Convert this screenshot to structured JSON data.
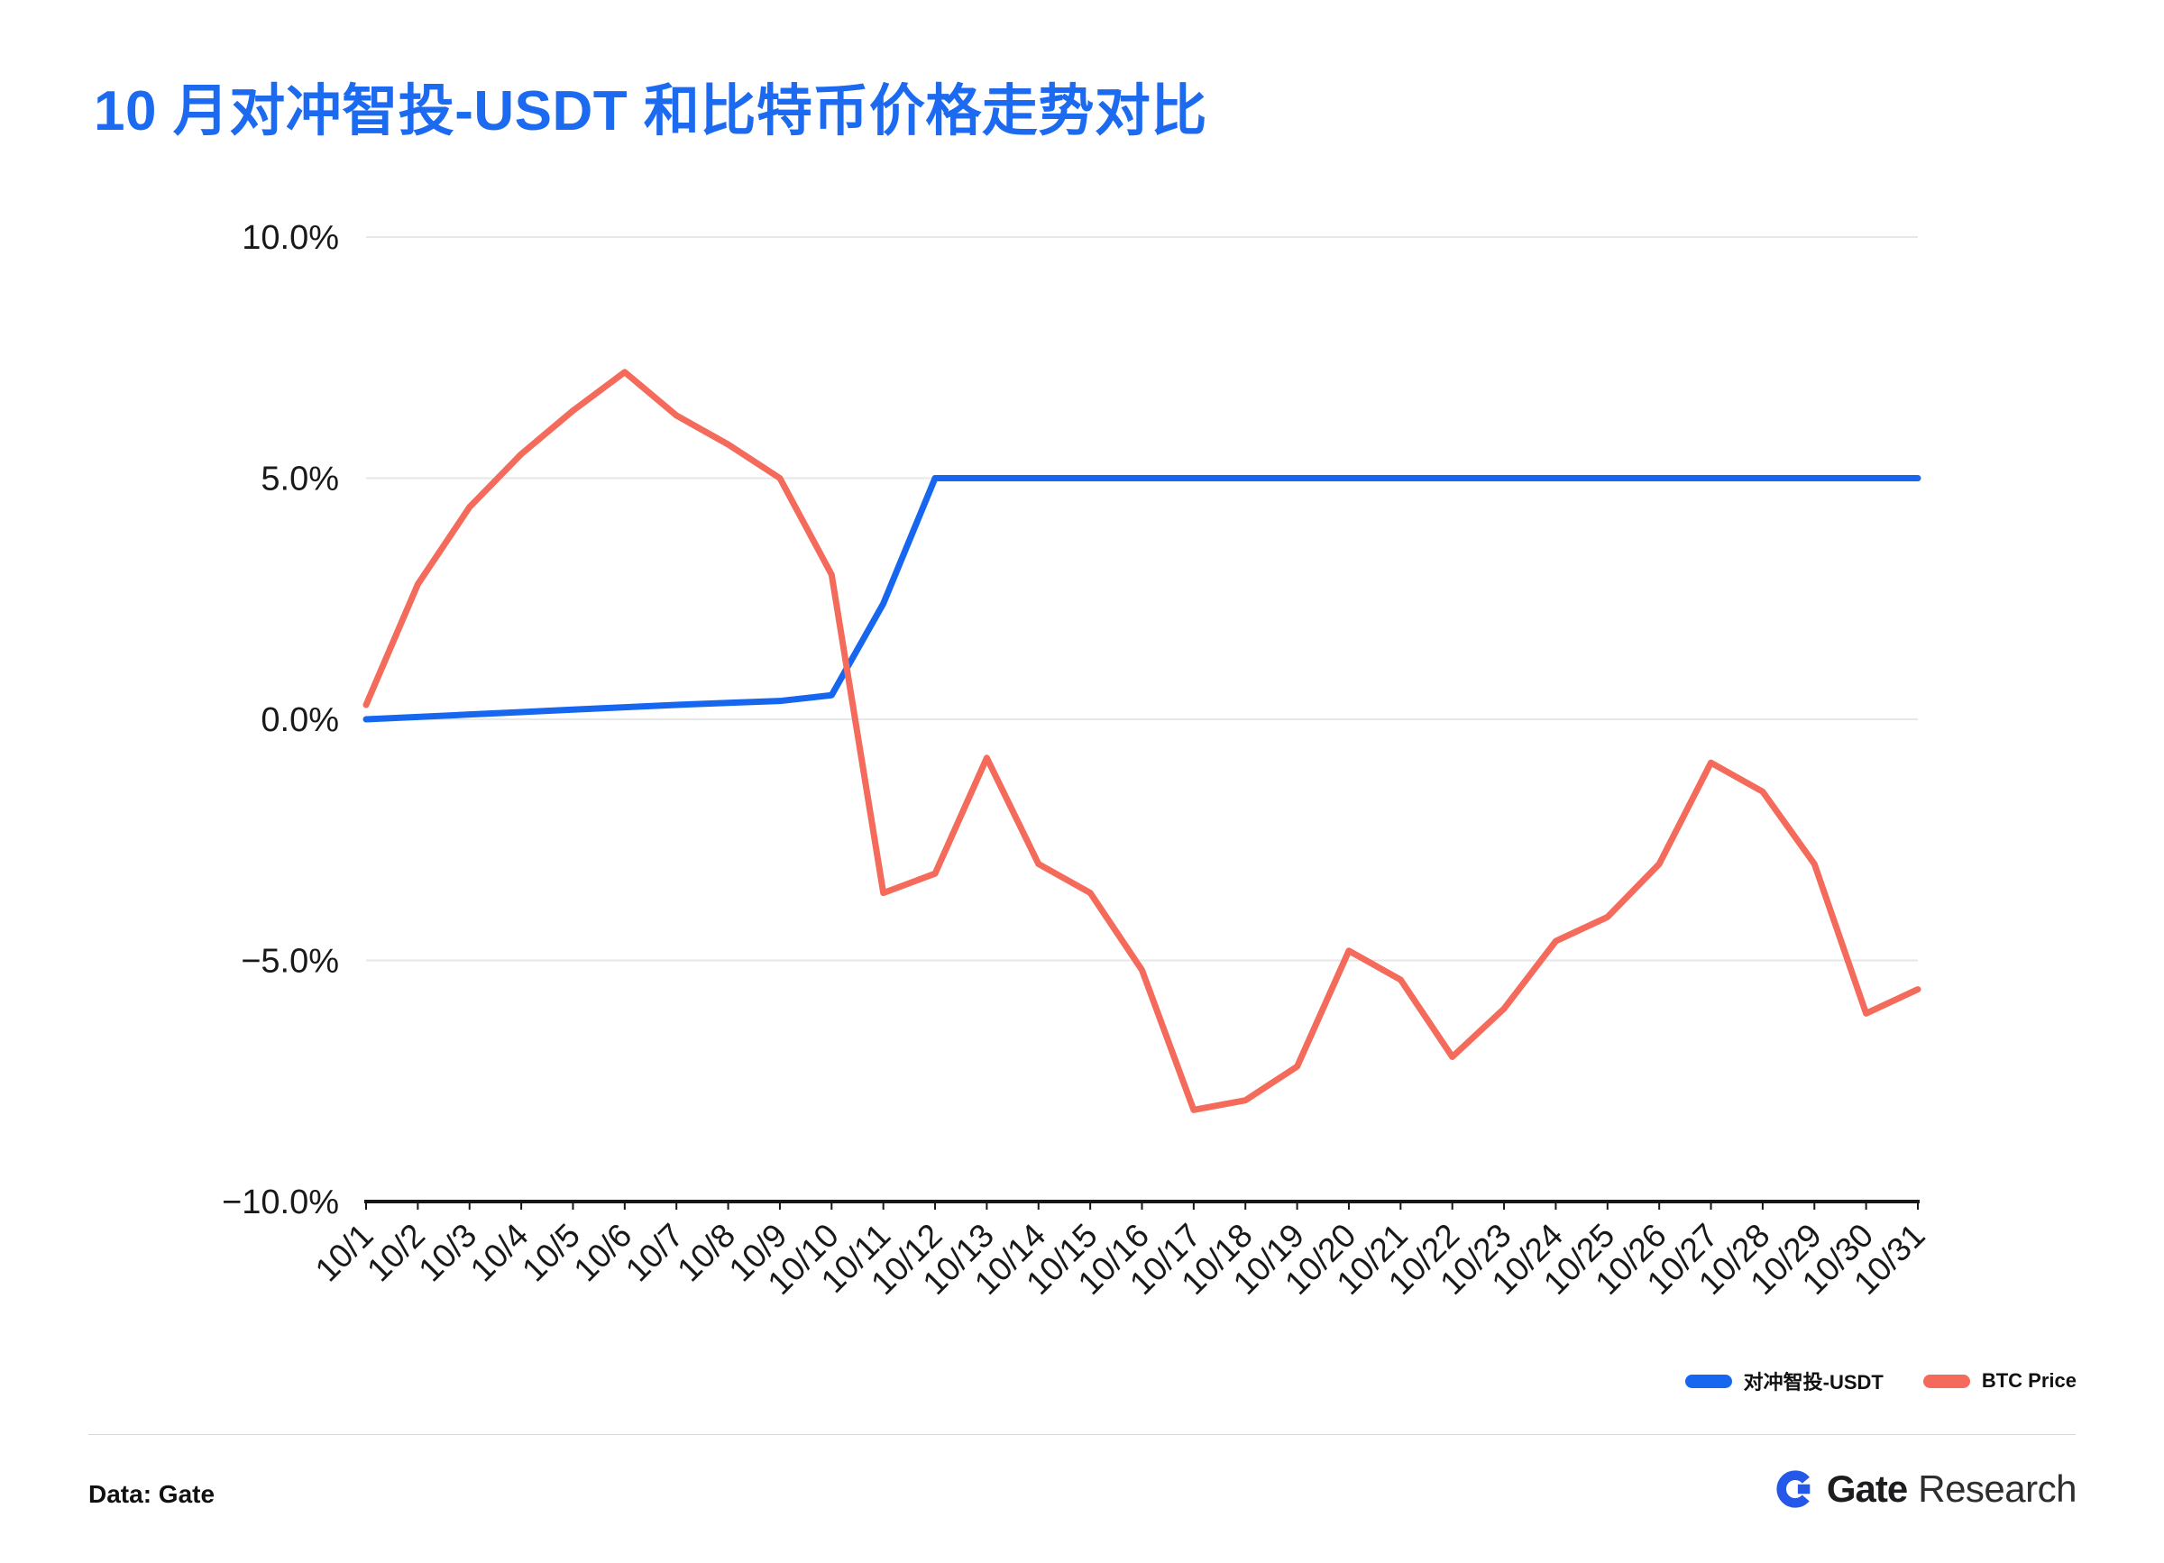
{
  "page": {
    "title": "10 月对冲智投-USDT 和比特币价格走势对比"
  },
  "footer": {
    "source": "Data: Gate",
    "brand_bold": "Gate",
    "brand_regular": "Research"
  },
  "chart_data": {
    "type": "line",
    "title": "10 月对冲智投-USDT 和比特币价格走势对比",
    "xlabel": "",
    "ylabel": "",
    "ylim": [
      -10,
      10
    ],
    "grid": true,
    "legend_position": "bottom-right",
    "x": [
      "10/1",
      "10/2",
      "10/3",
      "10/4",
      "10/5",
      "10/6",
      "10/7",
      "10/8",
      "10/9",
      "10/10",
      "10/11",
      "10/12",
      "10/13",
      "10/14",
      "10/15",
      "10/16",
      "10/17",
      "10/18",
      "10/19",
      "10/20",
      "10/21",
      "10/22",
      "10/23",
      "10/24",
      "10/25",
      "10/26",
      "10/27",
      "10/28",
      "10/29",
      "10/30",
      "10/31"
    ],
    "yticks": [
      {
        "value": 10,
        "label": "10.0%"
      },
      {
        "value": 5,
        "label": "5.0%"
      },
      {
        "value": 0,
        "label": "0.0%"
      },
      {
        "value": -5,
        "label": "−5.0%"
      },
      {
        "value": -10,
        "label": "−10.0%"
      }
    ],
    "series": [
      {
        "name": "对冲智投-USDT",
        "color": "#1766f0",
        "values": [
          0.0,
          0.05,
          0.1,
          0.15,
          0.2,
          0.25,
          0.3,
          0.34,
          0.38,
          0.5,
          2.4,
          5.0,
          5.0,
          5.0,
          5.0,
          5.0,
          5.0,
          5.0,
          5.0,
          5.0,
          5.0,
          5.0,
          5.0,
          5.0,
          5.0,
          5.0,
          5.0,
          5.0,
          5.0,
          5.0,
          5.0
        ]
      },
      {
        "name": "BTC Price",
        "color": "#f46a5b",
        "values": [
          0.3,
          2.8,
          4.4,
          5.5,
          6.4,
          7.2,
          6.3,
          5.7,
          5.0,
          3.0,
          -3.6,
          -3.2,
          -0.8,
          -3.0,
          -3.6,
          -5.2,
          -8.1,
          -7.9,
          -7.2,
          -4.8,
          -5.4,
          -7.0,
          -6.0,
          -4.6,
          -4.1,
          -3.0,
          -0.9,
          -1.5,
          -3.0,
          -6.1,
          -5.6
        ]
      }
    ]
  }
}
